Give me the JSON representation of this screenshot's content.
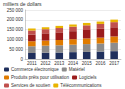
{
  "chart_data": {
    "type": "bar",
    "stacked": true,
    "y_label": "milliers de dollars",
    "categories": [
      "2011",
      "2012",
      "2013",
      "2014",
      "2015",
      "2016",
      "2017"
    ],
    "series": [
      {
        "name": "Commerce électronique",
        "color": "#1f2f5c",
        "values": [
          30000,
          32000,
          33000,
          35000,
          36000,
          38000,
          40000
        ]
      },
      {
        "name": "Matériel",
        "color": "#8c8c8c",
        "values": [
          35000,
          36000,
          37000,
          38000,
          40000,
          41000,
          43000
        ]
      },
      {
        "name": "Produits prêts pour utilisation",
        "color": "#e07b00",
        "values": [
          25000,
          26000,
          27000,
          28000,
          29000,
          30000,
          32000
        ]
      },
      {
        "name": "Logiciels",
        "color": "#9b1c1c",
        "values": [
          35000,
          37000,
          39000,
          41000,
          43000,
          45000,
          47000
        ]
      },
      {
        "name": "Services de soutien",
        "color": "#c0504d",
        "values": [
          20000,
          21000,
          22000,
          23000,
          24000,
          25000,
          26000
        ]
      },
      {
        "name": "Télécommunications",
        "color": "#e8b400",
        "values": [
          10000,
          10000,
          11000,
          11000,
          12000,
          12000,
          13000
        ]
      }
    ],
    "ylim": [
      0,
      250000
    ],
    "yticks": [
      0,
      {
        "value": 50000,
        "label": "50 000"
      },
      {
        "value": 100000,
        "label": "100 000"
      },
      {
        "value": 150000,
        "label": "150 000"
      },
      {
        "value": 200000,
        "label": "200 000"
      },
      {
        "value": 250000,
        "label": "250 000"
      }
    ],
    "grid": true,
    "legend": "bottom"
  }
}
